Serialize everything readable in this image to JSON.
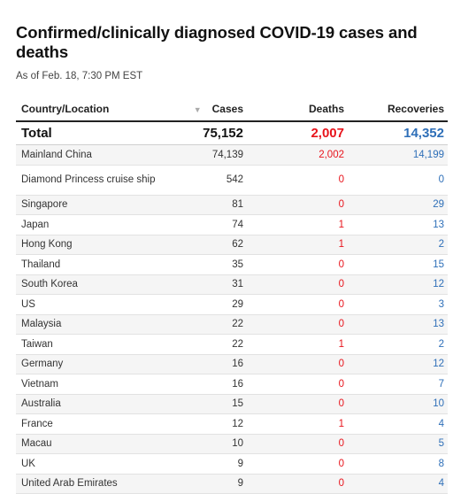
{
  "header": {
    "title": "Confirmed/clinically diagnosed COVID-19 cases and deaths",
    "subtitle": "As of Feb. 18, 7:30 PM EST"
  },
  "columns": {
    "location": "Country/Location",
    "sort_icon": "sort-down-triangle",
    "cases": "Cases",
    "deaths": "Deaths",
    "recoveries": "Recoveries"
  },
  "total": {
    "label": "Total",
    "cases": "75,152",
    "deaths": "2,007",
    "recoveries": "14,352"
  },
  "colors": {
    "deaths": "#e8141c",
    "recoveries": "#2e6fb8",
    "stripe": "#f5f5f5"
  },
  "rows": [
    {
      "location": "Mainland China",
      "cases": "74,139",
      "deaths": "2,002",
      "recoveries": "14,199"
    },
    {
      "location": "Diamond Princess cruise ship",
      "cases": "542",
      "deaths": "0",
      "recoveries": "0"
    },
    {
      "location": "Singapore",
      "cases": "81",
      "deaths": "0",
      "recoveries": "29"
    },
    {
      "location": "Japan",
      "cases": "74",
      "deaths": "1",
      "recoveries": "13"
    },
    {
      "location": "Hong Kong",
      "cases": "62",
      "deaths": "1",
      "recoveries": "2"
    },
    {
      "location": "Thailand",
      "cases": "35",
      "deaths": "0",
      "recoveries": "15"
    },
    {
      "location": "South Korea",
      "cases": "31",
      "deaths": "0",
      "recoveries": "12"
    },
    {
      "location": "US",
      "cases": "29",
      "deaths": "0",
      "recoveries": "3"
    },
    {
      "location": "Malaysia",
      "cases": "22",
      "deaths": "0",
      "recoveries": "13"
    },
    {
      "location": "Taiwan",
      "cases": "22",
      "deaths": "1",
      "recoveries": "2"
    },
    {
      "location": "Germany",
      "cases": "16",
      "deaths": "0",
      "recoveries": "12"
    },
    {
      "location": "Vietnam",
      "cases": "16",
      "deaths": "0",
      "recoveries": "7"
    },
    {
      "location": "Australia",
      "cases": "15",
      "deaths": "0",
      "recoveries": "10"
    },
    {
      "location": "France",
      "cases": "12",
      "deaths": "1",
      "recoveries": "4"
    },
    {
      "location": "Macau",
      "cases": "10",
      "deaths": "0",
      "recoveries": "5"
    },
    {
      "location": "UK",
      "cases": "9",
      "deaths": "0",
      "recoveries": "8"
    },
    {
      "location": "United Arab Emirates",
      "cases": "9",
      "deaths": "0",
      "recoveries": "4"
    }
  ]
}
